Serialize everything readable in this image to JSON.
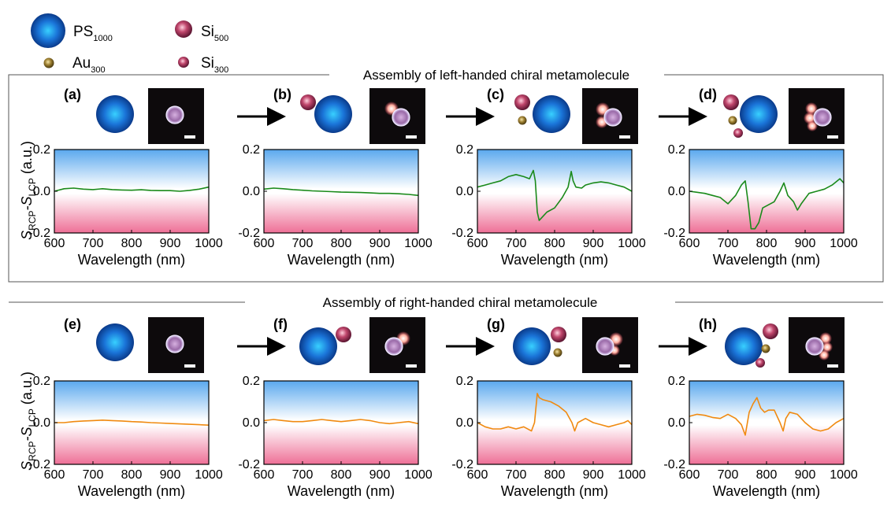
{
  "legend": [
    {
      "name": "PS",
      "sub": "1000",
      "color": "#1e6fd0"
    },
    {
      "name": "Si",
      "sub": "500",
      "color": "#b23a5e"
    },
    {
      "name": "Au",
      "sub": "300",
      "color": "#a58a3a"
    },
    {
      "name": "Si",
      "sub": "300",
      "color": "#c2406a"
    }
  ],
  "sections": [
    {
      "title": "Assembly of left-handed chiral metamolecule"
    },
    {
      "title": "Assembly of right-handed chiral metamolecule"
    }
  ],
  "axis": {
    "xlabel": "Wavelength (nm)",
    "ylabel_main": "S",
    "ylabel_sub1": "RCP",
    "ylabel_dash": "-S",
    "ylabel_sub2": "LCP",
    "ylabel_unit": " (a.u.)"
  },
  "colors": {
    "left": "#1a8a1a",
    "right": "#f08a10"
  },
  "chart_data": [
    {
      "type": "line",
      "panel": "(a)",
      "row": 0,
      "color": "#1a8a1a",
      "xlabel": "Wavelength (nm)",
      "ylabel": "S_RCP-S_LCP (a.u.)",
      "xlim": [
        600,
        1000
      ],
      "ylim": [
        -0.2,
        0.2
      ],
      "xticks": [
        600,
        700,
        800,
        900,
        1000
      ],
      "yticks": [
        0.2,
        0.0,
        -0.2
      ],
      "x": [
        600,
        625,
        650,
        675,
        700,
        725,
        750,
        775,
        800,
        825,
        850,
        875,
        900,
        925,
        950,
        975,
        1000
      ],
      "y": [
        0.0,
        0.012,
        0.015,
        0.01,
        0.008,
        0.012,
        0.008,
        0.006,
        0.005,
        0.007,
        0.004,
        0.003,
        0.003,
        0.0,
        0.004,
        0.01,
        0.02
      ]
    },
    {
      "type": "line",
      "panel": "(b)",
      "row": 0,
      "color": "#1a8a1a",
      "xlabel": "Wavelength (nm)",
      "ylabel": "",
      "xlim": [
        600,
        1000
      ],
      "ylim": [
        -0.2,
        0.2
      ],
      "xticks": [
        600,
        700,
        800,
        900,
        1000
      ],
      "yticks": [
        0.2,
        0.0,
        -0.2
      ],
      "x": [
        600,
        625,
        650,
        675,
        700,
        725,
        750,
        775,
        800,
        825,
        850,
        875,
        900,
        925,
        950,
        975,
        1000
      ],
      "y": [
        0.01,
        0.015,
        0.012,
        0.008,
        0.005,
        0.002,
        0.0,
        -0.002,
        -0.004,
        -0.005,
        -0.006,
        -0.008,
        -0.01,
        -0.01,
        -0.012,
        -0.015,
        -0.02
      ]
    },
    {
      "type": "line",
      "panel": "(c)",
      "row": 0,
      "color": "#1a8a1a",
      "xlabel": "Wavelength (nm)",
      "ylabel": "",
      "xlim": [
        600,
        1000
      ],
      "ylim": [
        -0.2,
        0.2
      ],
      "xticks": [
        600,
        700,
        800,
        900,
        1000
      ],
      "yticks": [
        0.2,
        0.0,
        -0.2
      ],
      "x": [
        600,
        620,
        640,
        660,
        680,
        700,
        720,
        735,
        745,
        750,
        755,
        760,
        770,
        780,
        800,
        820,
        835,
        843,
        848,
        855,
        870,
        880,
        900,
        920,
        940,
        960,
        980,
        1000
      ],
      "y": [
        0.02,
        0.03,
        0.04,
        0.05,
        0.07,
        0.08,
        0.07,
        0.06,
        0.1,
        0.05,
        -0.1,
        -0.14,
        -0.12,
        -0.1,
        -0.08,
        -0.03,
        0.02,
        0.095,
        0.05,
        0.02,
        0.015,
        0.03,
        0.04,
        0.045,
        0.04,
        0.03,
        0.02,
        0.0
      ]
    },
    {
      "type": "line",
      "panel": "(d)",
      "row": 0,
      "color": "#1a8a1a",
      "xlabel": "Wavelength (nm)",
      "ylabel": "",
      "xlim": [
        600,
        1000
      ],
      "ylim": [
        -0.2,
        0.2
      ],
      "xticks": [
        600,
        700,
        800,
        900,
        1000
      ],
      "yticks": [
        0.2,
        0.0,
        -0.2
      ],
      "x": [
        600,
        620,
        640,
        660,
        680,
        700,
        720,
        735,
        745,
        752,
        760,
        770,
        780,
        790,
        800,
        820,
        835,
        845,
        855,
        870,
        880,
        890,
        910,
        930,
        950,
        970,
        990,
        1000
      ],
      "y": [
        0.0,
        -0.005,
        -0.01,
        -0.02,
        -0.03,
        -0.06,
        -0.02,
        0.03,
        0.05,
        -0.05,
        -0.18,
        -0.18,
        -0.15,
        -0.08,
        -0.07,
        -0.05,
        0.0,
        0.04,
        -0.02,
        -0.05,
        -0.09,
        -0.06,
        -0.01,
        0.0,
        0.01,
        0.03,
        0.06,
        0.04
      ]
    },
    {
      "type": "line",
      "panel": "(e)",
      "row": 1,
      "color": "#f08a10",
      "xlabel": "Wavelength (nm)",
      "ylabel": "S_RCP-S_LCP (a.u.)",
      "xlim": [
        600,
        1000
      ],
      "ylim": [
        -0.2,
        0.2
      ],
      "xticks": [
        600,
        700,
        800,
        900,
        1000
      ],
      "yticks": [
        0.2,
        0.0,
        -0.2
      ],
      "x": [
        600,
        625,
        650,
        675,
        700,
        725,
        750,
        775,
        800,
        825,
        850,
        875,
        900,
        925,
        950,
        975,
        1000
      ],
      "y": [
        0.0,
        0.0,
        0.005,
        0.008,
        0.01,
        0.012,
        0.01,
        0.008,
        0.005,
        0.003,
        0.0,
        -0.002,
        -0.004,
        -0.006,
        -0.008,
        -0.01,
        -0.012
      ]
    },
    {
      "type": "line",
      "panel": "(f)",
      "row": 1,
      "color": "#f08a10",
      "xlabel": "Wavelength (nm)",
      "ylabel": "",
      "xlim": [
        600,
        1000
      ],
      "ylim": [
        -0.2,
        0.2
      ],
      "xticks": [
        600,
        700,
        800,
        900,
        1000
      ],
      "yticks": [
        0.2,
        0.0,
        -0.2
      ],
      "x": [
        600,
        625,
        650,
        675,
        700,
        725,
        750,
        775,
        800,
        825,
        850,
        875,
        900,
        925,
        950,
        975,
        1000
      ],
      "y": [
        0.01,
        0.015,
        0.01,
        0.005,
        0.005,
        0.01,
        0.015,
        0.01,
        0.005,
        0.01,
        0.015,
        0.01,
        0.0,
        -0.005,
        0.0,
        0.005,
        -0.005
      ]
    },
    {
      "type": "line",
      "panel": "(g)",
      "row": 1,
      "color": "#f08a10",
      "xlabel": "Wavelength (nm)",
      "ylabel": "",
      "xlim": [
        600,
        1000
      ],
      "ylim": [
        -0.2,
        0.2
      ],
      "xticks": [
        600,
        700,
        800,
        900,
        1000
      ],
      "yticks": [
        0.2,
        0.0,
        -0.2
      ],
      "x": [
        600,
        620,
        640,
        660,
        680,
        700,
        720,
        740,
        748,
        755,
        760,
        770,
        790,
        810,
        830,
        845,
        852,
        860,
        880,
        900,
        920,
        940,
        960,
        980,
        990,
        1000
      ],
      "y": [
        0.0,
        -0.02,
        -0.03,
        -0.03,
        -0.02,
        -0.03,
        -0.02,
        -0.04,
        0.0,
        0.14,
        0.12,
        0.11,
        0.1,
        0.08,
        0.05,
        0.0,
        -0.04,
        0.0,
        0.02,
        0.0,
        -0.01,
        -0.02,
        -0.01,
        0.0,
        0.01,
        -0.01
      ]
    },
    {
      "type": "line",
      "panel": "(h)",
      "row": 1,
      "color": "#f08a10",
      "xlabel": "Wavelength (nm)",
      "ylabel": "",
      "xlim": [
        600,
        1000
      ],
      "ylim": [
        -0.2,
        0.2
      ],
      "xticks": [
        600,
        700,
        800,
        900,
        1000
      ],
      "yticks": [
        0.2,
        0.0,
        -0.2
      ],
      "x": [
        600,
        620,
        640,
        660,
        680,
        700,
        720,
        735,
        745,
        755,
        765,
        775,
        785,
        795,
        805,
        820,
        835,
        843,
        850,
        860,
        880,
        900,
        920,
        940,
        960,
        980,
        1000
      ],
      "y": [
        0.03,
        0.04,
        0.035,
        0.025,
        0.02,
        0.04,
        0.02,
        -0.01,
        -0.06,
        0.05,
        0.09,
        0.12,
        0.07,
        0.05,
        0.06,
        0.06,
        0.0,
        -0.04,
        0.02,
        0.05,
        0.04,
        0.0,
        -0.03,
        -0.04,
        -0.03,
        0.0,
        0.02
      ]
    }
  ]
}
